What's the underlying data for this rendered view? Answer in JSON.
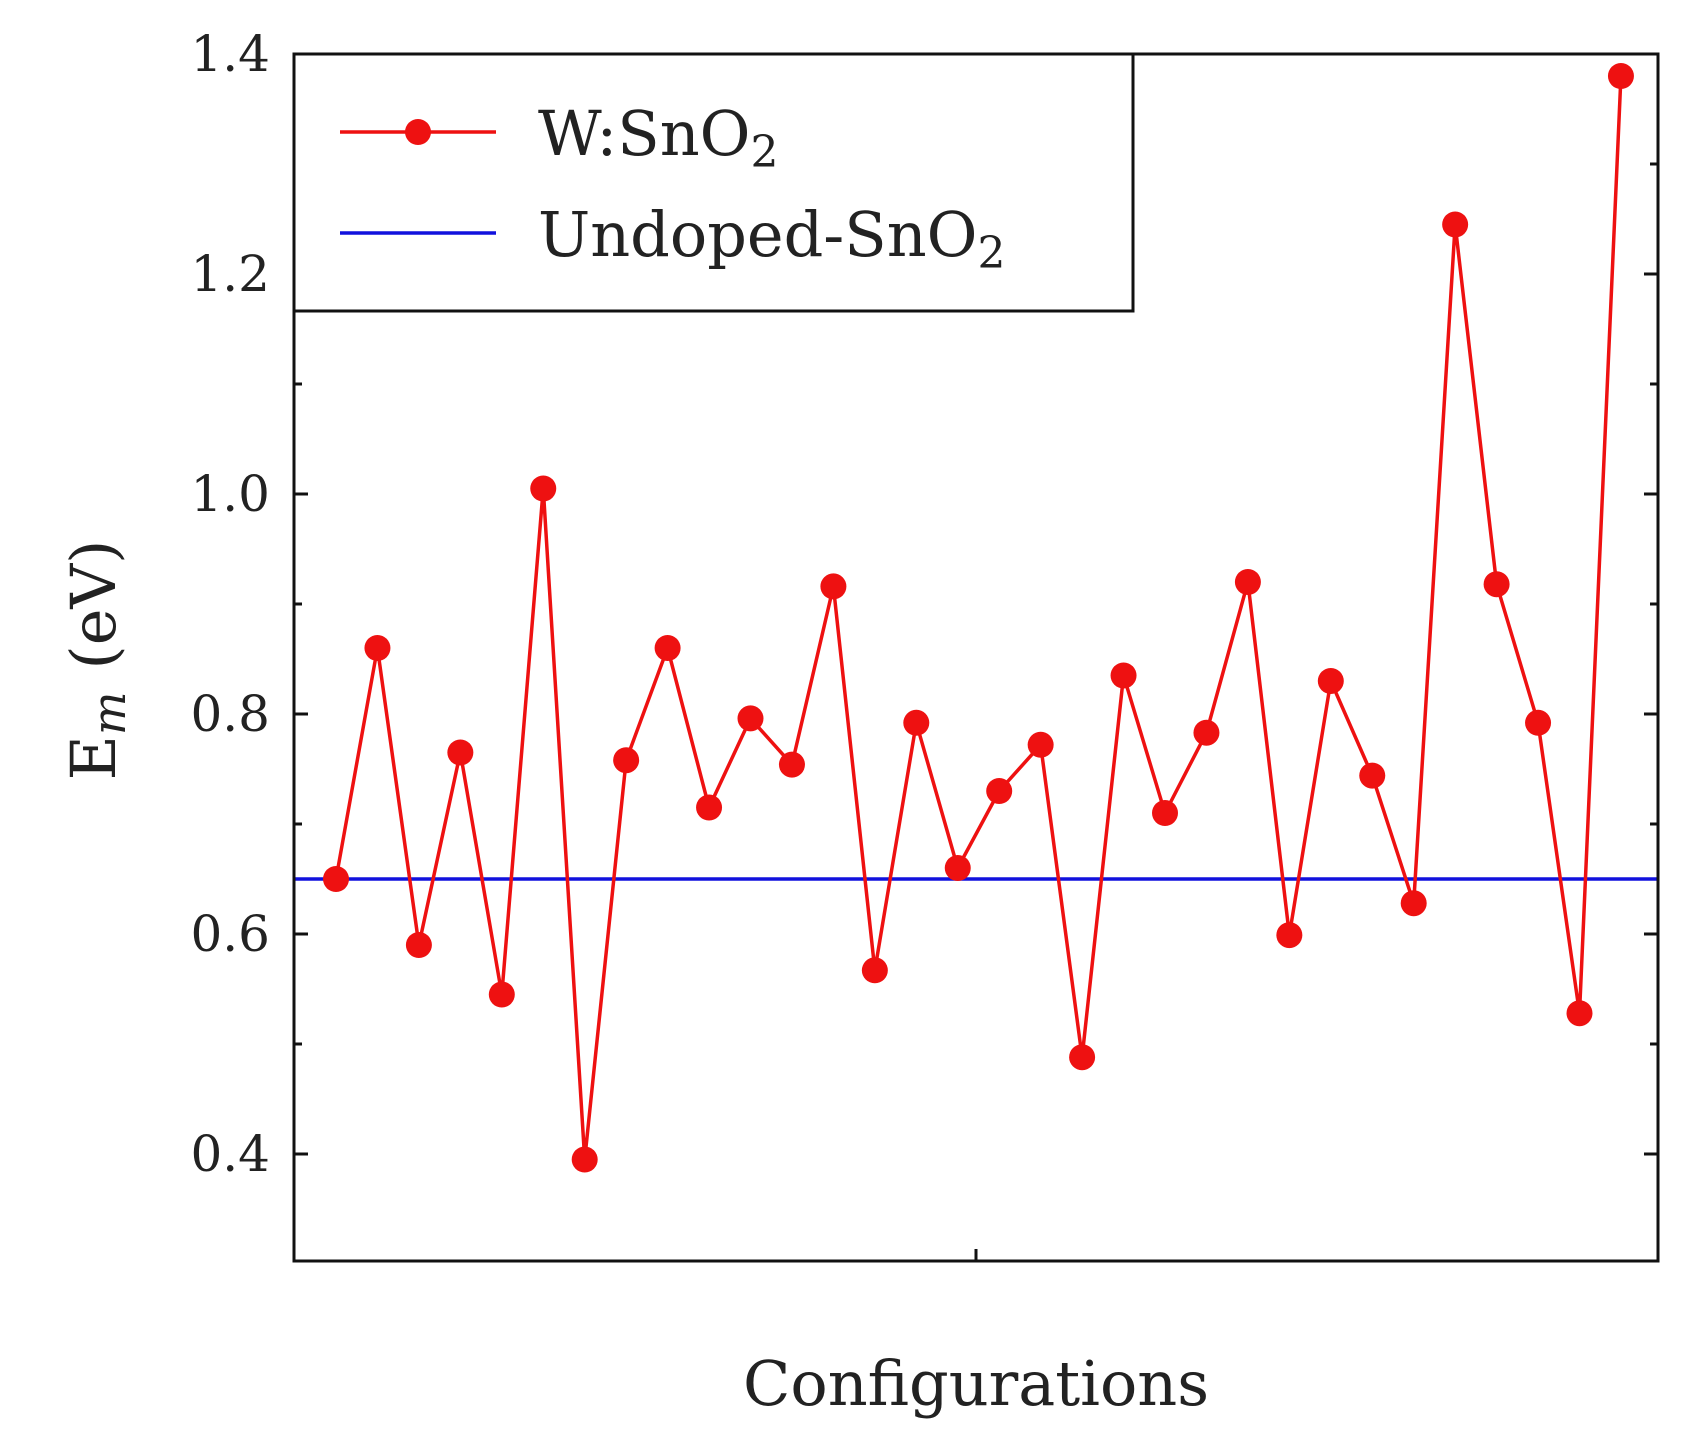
{
  "chart_data": {
    "type": "line",
    "xlabel": "Configurations",
    "ylabel_main": "E",
    "ylabel_sub": "m",
    "ylabel_unit": "(eV)",
    "ylim": [
      0.3,
      1.42
    ],
    "y_ticks": [
      "0.4",
      "0.6",
      "0.8",
      "1.0",
      "1.2",
      "1.4"
    ],
    "y_tick_values": [
      0.4,
      0.6,
      0.8,
      1.0,
      1.2,
      1.4
    ],
    "y_minor_ticks": [
      0.5,
      0.7,
      0.9,
      1.1,
      1.3
    ],
    "grid": false,
    "legend_placement": "top-left",
    "series": [
      {
        "name_main": "W:SnO",
        "name_sub": "2",
        "color": "#ee1111",
        "marker": "circle",
        "x": [
          1,
          2,
          3,
          4,
          5,
          6,
          7,
          8,
          9,
          10,
          11,
          12,
          13,
          14,
          15,
          16,
          17,
          18,
          19,
          20,
          21,
          22,
          23,
          24,
          25,
          26,
          27,
          28,
          29,
          30,
          31,
          32
        ],
        "values": [
          0.65,
          0.86,
          0.59,
          0.765,
          0.545,
          1.005,
          0.395,
          0.758,
          0.86,
          0.715,
          0.796,
          0.754,
          0.916,
          0.567,
          0.792,
          0.66,
          0.73,
          0.772,
          0.488,
          0.835,
          0.71,
          0.783,
          0.92,
          0.599,
          0.83,
          0.744,
          0.628,
          1.245,
          0.918,
          0.792,
          0.528,
          1.38
        ]
      },
      {
        "name_main": "Undoped-SnO",
        "name_sub": "2",
        "color": "#1111dd",
        "marker": "none",
        "constant": 0.65
      }
    ]
  }
}
